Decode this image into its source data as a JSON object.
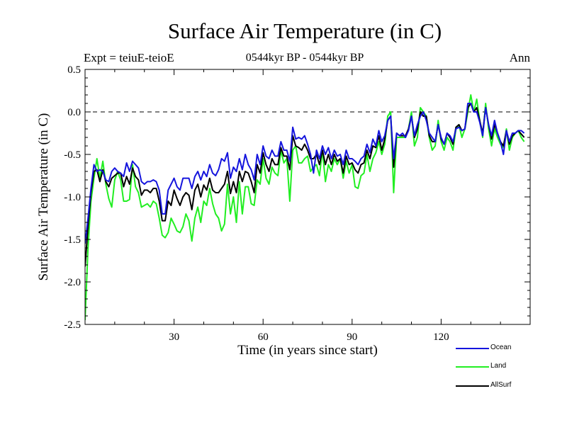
{
  "chart_data": {
    "type": "line",
    "title": "Surface Air Temperature (in C)",
    "subtitle": "0544kyr BP - 0544kyr BP",
    "expt_label": "Expt = teiuE-teioE",
    "season_label": "Ann",
    "xlabel": "Time (in years since start)",
    "ylabel": "Surface Air Temperature (in C)",
    "xlim": [
      0,
      150
    ],
    "ylim": [
      -2.5,
      0.5
    ],
    "x_ticks": [
      30,
      60,
      90,
      120
    ],
    "y_ticks": [
      0.5,
      0.0,
      -0.5,
      -1.0,
      -1.5,
      -2.0,
      -2.5
    ],
    "y_tick_labels": [
      "0.5",
      "0.0",
      "-0.5",
      "-1.0",
      "-1.5",
      "-2.0",
      "-2.5"
    ],
    "reference_line": 0.0,
    "x_start": 0,
    "x_step": 1,
    "series": [
      {
        "name": "Land",
        "color": "#22ee22",
        "values": [
          -2.45,
          -1.6,
          -1.05,
          -0.78,
          -0.55,
          -0.78,
          -0.58,
          -0.85,
          -1.02,
          -1.12,
          -0.8,
          -0.7,
          -0.8,
          -1.05,
          -1.05,
          -1.03,
          -0.62,
          -0.88,
          -0.95,
          -1.12,
          -1.1,
          -1.08,
          -1.12,
          -1.05,
          -1.08,
          -1.25,
          -1.45,
          -1.48,
          -1.42,
          -1.25,
          -1.32,
          -1.4,
          -1.42,
          -1.35,
          -1.2,
          -1.28,
          -1.52,
          -1.25,
          -1.12,
          -1.3,
          -1.05,
          -1.1,
          -0.9,
          -1.08,
          -1.2,
          -1.25,
          -1.4,
          -1.32,
          -0.85,
          -1.2,
          -1.0,
          -1.3,
          -0.82,
          -1.2,
          -0.88,
          -0.88,
          -1.08,
          -1.1,
          -0.8,
          -0.85,
          -0.55,
          -0.78,
          -0.85,
          -0.65,
          -0.72,
          -0.75,
          -0.45,
          -0.6,
          -0.55,
          -1.05,
          -0.45,
          -0.4,
          -0.6,
          -0.6,
          -0.55,
          -0.52,
          -0.7,
          -0.65,
          -0.62,
          -0.75,
          -0.45,
          -0.82,
          -0.62,
          -0.7,
          -0.55,
          -0.62,
          -0.55,
          -0.78,
          -0.58,
          -0.72,
          -0.62,
          -0.88,
          -0.9,
          -0.75,
          -0.72,
          -0.5,
          -0.7,
          -0.55,
          -0.48,
          -0.35,
          -0.5,
          -0.38,
          -0.05,
          0.0,
          -0.95,
          -0.3,
          -0.3,
          -0.3,
          -0.3,
          -0.2,
          0.0,
          -0.4,
          -0.3,
          0.05,
          0.0,
          -0.05,
          -0.3,
          -0.45,
          -0.4,
          -0.1,
          -0.35,
          -0.45,
          -0.3,
          -0.35,
          -0.45,
          -0.2,
          -0.15,
          -0.3,
          -0.2,
          0.0,
          0.2,
          0.0,
          0.15,
          -0.1,
          -0.3,
          0.1,
          -0.2,
          -0.4,
          -0.2,
          -0.3,
          -0.38,
          -0.42,
          -0.2,
          -0.45,
          -0.3,
          -0.25,
          -0.22,
          -0.3,
          -0.35
        ]
      },
      {
        "name": "AllSurf",
        "color": "#000000",
        "values": [
          -1.82,
          -1.35,
          -0.95,
          -0.7,
          -0.68,
          -0.82,
          -0.68,
          -0.82,
          -0.88,
          -0.78,
          -0.75,
          -0.72,
          -0.72,
          -0.88,
          -0.76,
          -0.85,
          -0.66,
          -0.76,
          -0.8,
          -0.98,
          -0.92,
          -0.92,
          -0.95,
          -0.9,
          -0.9,
          -1.05,
          -1.28,
          -1.28,
          -1.05,
          -1.1,
          -0.92,
          -1.02,
          -1.1,
          -1.0,
          -0.95,
          -0.98,
          -1.15,
          -0.92,
          -0.85,
          -1.0,
          -0.86,
          -0.92,
          -0.78,
          -0.92,
          -0.95,
          -0.95,
          -0.9,
          -0.85,
          -0.7,
          -0.96,
          -0.82,
          -0.95,
          -0.7,
          -0.82,
          -0.7,
          -0.72,
          -0.82,
          -0.95,
          -0.62,
          -0.72,
          -0.48,
          -0.62,
          -0.7,
          -0.55,
          -0.62,
          -0.62,
          -0.42,
          -0.52,
          -0.52,
          -0.68,
          -0.28,
          -0.4,
          -0.42,
          -0.45,
          -0.38,
          -0.45,
          -0.55,
          -0.55,
          -0.5,
          -0.62,
          -0.45,
          -0.62,
          -0.5,
          -0.62,
          -0.5,
          -0.58,
          -0.55,
          -0.72,
          -0.52,
          -0.62,
          -0.6,
          -0.68,
          -0.72,
          -0.62,
          -0.6,
          -0.45,
          -0.55,
          -0.4,
          -0.42,
          -0.28,
          -0.45,
          -0.32,
          -0.1,
          -0.05,
          -0.65,
          -0.25,
          -0.28,
          -0.28,
          -0.28,
          -0.2,
          -0.05,
          -0.3,
          -0.2,
          0.0,
          -0.05,
          -0.05,
          -0.28,
          -0.35,
          -0.35,
          -0.15,
          -0.32,
          -0.38,
          -0.25,
          -0.3,
          -0.38,
          -0.18,
          -0.15,
          -0.22,
          -0.2,
          0.05,
          0.1,
          0.0,
          0.05,
          -0.1,
          -0.25,
          0.05,
          -0.15,
          -0.32,
          -0.15,
          -0.25,
          -0.35,
          -0.4,
          -0.22,
          -0.38,
          -0.28,
          -0.25,
          -0.22,
          -0.26,
          -0.3
        ]
      },
      {
        "name": "Ocean",
        "color": "#1515dd",
        "values": [
          -1.55,
          -1.25,
          -0.9,
          -0.62,
          -0.7,
          -0.68,
          -0.7,
          -0.8,
          -0.82,
          -0.7,
          -0.66,
          -0.7,
          -0.72,
          -0.76,
          -0.6,
          -0.7,
          -0.58,
          -0.62,
          -0.66,
          -0.82,
          -0.85,
          -0.82,
          -0.82,
          -0.8,
          -0.82,
          -0.92,
          -1.2,
          -1.2,
          -0.92,
          -0.85,
          -0.78,
          -0.88,
          -0.92,
          -0.78,
          -0.78,
          -0.78,
          -0.9,
          -0.76,
          -0.7,
          -0.8,
          -0.7,
          -0.76,
          -0.62,
          -0.72,
          -0.75,
          -0.68,
          -0.55,
          -0.58,
          -0.48,
          -0.78,
          -0.65,
          -0.7,
          -0.55,
          -0.68,
          -0.5,
          -0.62,
          -0.68,
          -0.8,
          -0.5,
          -0.62,
          -0.4,
          -0.52,
          -0.55,
          -0.45,
          -0.52,
          -0.52,
          -0.35,
          -0.45,
          -0.45,
          -0.58,
          -0.18,
          -0.32,
          -0.3,
          -0.32,
          -0.28,
          -0.38,
          -0.5,
          -0.72,
          -0.45,
          -0.55,
          -0.4,
          -0.5,
          -0.42,
          -0.55,
          -0.45,
          -0.52,
          -0.5,
          -0.62,
          -0.45,
          -0.55,
          -0.55,
          -0.58,
          -0.62,
          -0.55,
          -0.52,
          -0.38,
          -0.48,
          -0.32,
          -0.4,
          -0.22,
          -0.35,
          -0.28,
          -0.1,
          -0.05,
          -0.55,
          -0.25,
          -0.28,
          -0.25,
          -0.3,
          -0.22,
          -0.05,
          -0.28,
          -0.15,
          -0.05,
          0.0,
          -0.1,
          -0.25,
          -0.3,
          -0.35,
          -0.15,
          -0.3,
          -0.38,
          -0.25,
          -0.28,
          -0.35,
          -0.2,
          -0.18,
          -0.22,
          -0.2,
          0.1,
          0.1,
          0.0,
          0.0,
          -0.12,
          -0.28,
          0.05,
          -0.15,
          -0.28,
          -0.1,
          -0.25,
          -0.35,
          -0.5,
          -0.22,
          -0.35,
          -0.25,
          -0.25,
          -0.22,
          -0.22,
          -0.25
        ]
      }
    ],
    "legend_order": [
      "Ocean",
      "Land",
      "AllSurf"
    ],
    "legend_position": "bottom-right"
  }
}
